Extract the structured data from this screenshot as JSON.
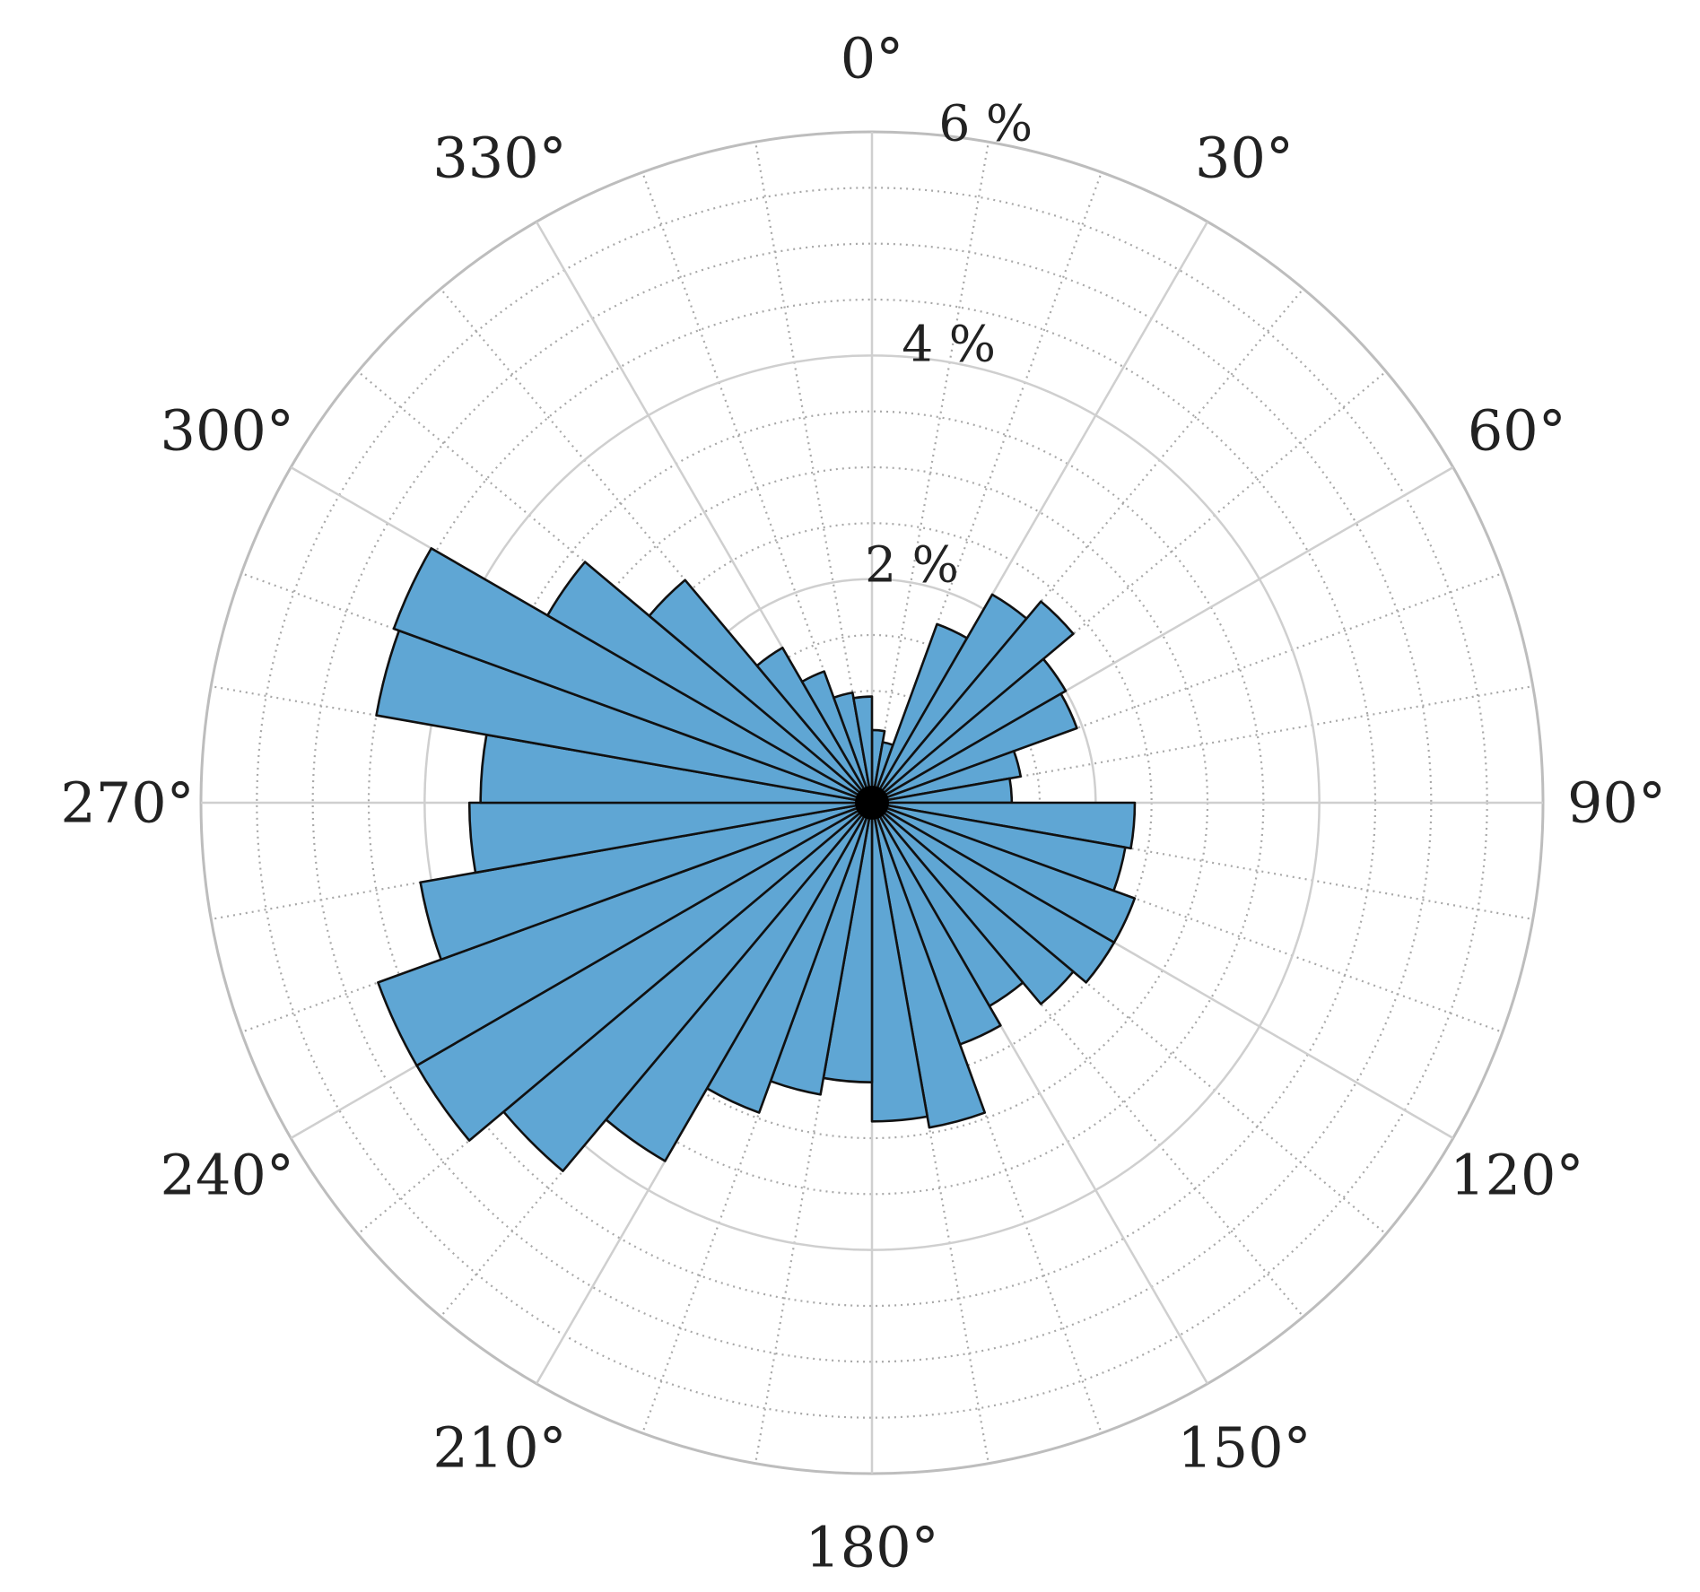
{
  "chart_data": {
    "type": "polar-bar",
    "angle_unit": "degrees",
    "direction": "clockwise",
    "zero_location": "top",
    "bin_width_deg": 10,
    "theta_tick_labels": [
      "0°",
      "30°",
      "60°",
      "90°",
      "120°",
      "150°",
      "180°",
      "210°",
      "240°",
      "270°",
      "300°",
      "330°"
    ],
    "theta_ticks": [
      0,
      30,
      60,
      90,
      120,
      150,
      180,
      210,
      240,
      270,
      300,
      330
    ],
    "r_tick_labels": [
      "2 %",
      "4 %",
      "6 %"
    ],
    "r_ticks": [
      2,
      4,
      6
    ],
    "r_max": 6,
    "bars": [
      {
        "angle": 5,
        "value": 0.65
      },
      {
        "angle": 15,
        "value": 0.55
      },
      {
        "angle": 25,
        "value": 1.7
      },
      {
        "angle": 35,
        "value": 2.15
      },
      {
        "angle": 45,
        "value": 2.35
      },
      {
        "angle": 55,
        "value": 2.0
      },
      {
        "angle": 65,
        "value": 1.95
      },
      {
        "angle": 75,
        "value": 1.35
      },
      {
        "angle": 85,
        "value": 1.25
      },
      {
        "angle": 95,
        "value": 2.35
      },
      {
        "angle": 105,
        "value": 2.3
      },
      {
        "angle": 115,
        "value": 2.5
      },
      {
        "angle": 125,
        "value": 2.5
      },
      {
        "angle": 135,
        "value": 2.35
      },
      {
        "angle": 145,
        "value": 2.1
      },
      {
        "angle": 155,
        "value": 2.3
      },
      {
        "angle": 165,
        "value": 2.95
      },
      {
        "angle": 175,
        "value": 2.85
      },
      {
        "angle": 185,
        "value": 2.5
      },
      {
        "angle": 195,
        "value": 2.65
      },
      {
        "angle": 205,
        "value": 2.95
      },
      {
        "angle": 215,
        "value": 3.7
      },
      {
        "angle": 225,
        "value": 4.3
      },
      {
        "angle": 235,
        "value": 4.7
      },
      {
        "angle": 245,
        "value": 4.7
      },
      {
        "angle": 255,
        "value": 4.1
      },
      {
        "angle": 265,
        "value": 3.6
      },
      {
        "angle": 275,
        "value": 3.5
      },
      {
        "angle": 285,
        "value": 4.5
      },
      {
        "angle": 295,
        "value": 4.55
      },
      {
        "angle": 305,
        "value": 3.35
      },
      {
        "angle": 315,
        "value": 2.6
      },
      {
        "angle": 325,
        "value": 1.6
      },
      {
        "angle": 335,
        "value": 1.25
      },
      {
        "angle": 345,
        "value": 1.0
      },
      {
        "angle": 355,
        "value": 0.95
      }
    ],
    "bar_color": "#5fa6d4",
    "edge_color": "#111111",
    "grid": true,
    "grid_color": "#cfcfcf",
    "minor_grid_color": "#a8a8a8",
    "outer_ring_color": "#bdbdbd"
  }
}
